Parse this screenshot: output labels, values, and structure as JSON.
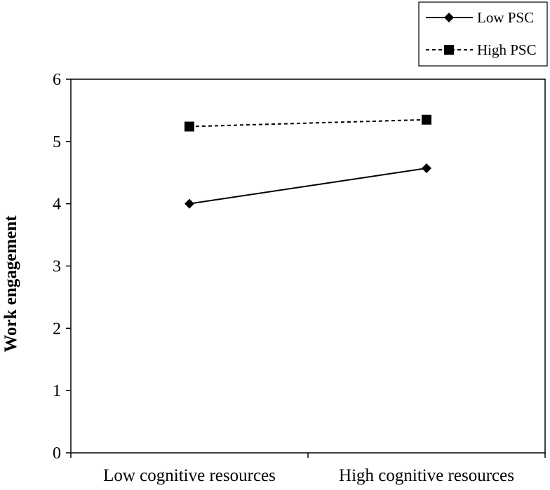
{
  "chart_data": {
    "type": "line",
    "title": "",
    "xlabel": "",
    "ylabel": "Work engagement",
    "categories": [
      "Low cognitive resources",
      "High cognitive resources"
    ],
    "ylim": [
      0,
      6
    ],
    "yticks": [
      0,
      1,
      2,
      3,
      4,
      5,
      6
    ],
    "grid": false,
    "legend_position": "top-right",
    "series": [
      {
        "name": "Low PSC",
        "values": [
          4.0,
          4.57
        ],
        "line": "solid",
        "marker": "diamond",
        "color": "#000000"
      },
      {
        "name": "High PSC",
        "values": [
          5.24,
          5.35
        ],
        "line": "dashed",
        "marker": "square",
        "color": "#000000"
      }
    ]
  }
}
